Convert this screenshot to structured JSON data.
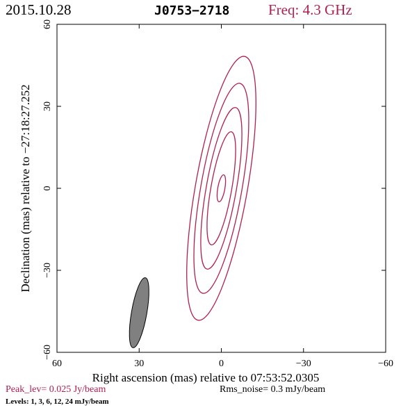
{
  "header": {
    "date": "2015.10.28",
    "source": "J0753−2718",
    "freq": "Freq: 4.3 GHz"
  },
  "chart_data": {
    "type": "contour",
    "xlabel": "Right ascension (mas) relative to 07:53:52.0305",
    "ylabel": "Declination (mas) relative to −27:18:27.252",
    "xlim": [
      60,
      -60
    ],
    "ylim": [
      -60,
      60
    ],
    "xticks": [
      60,
      30,
      0,
      -30,
      -60
    ],
    "yticks": [
      -60,
      -30,
      0,
      30,
      60
    ],
    "xtick_labels": [
      "60",
      "30",
      "0",
      "−30",
      "−60"
    ],
    "ytick_labels": [
      "−60",
      "−30",
      "0",
      "30",
      "60"
    ],
    "contour_levels_mJy_per_beam": [
      1,
      3,
      6,
      12,
      24
    ],
    "contours": [
      {
        "level": 1,
        "center": [
          0,
          0
        ],
        "semi_major": 49,
        "semi_minor": 9.5,
        "pa_deg": 10
      },
      {
        "level": 3,
        "center": [
          0,
          0
        ],
        "semi_major": 39,
        "semi_minor": 7.5,
        "pa_deg": 10
      },
      {
        "level": 6,
        "center": [
          0,
          0
        ],
        "semi_major": 30,
        "semi_minor": 5.5,
        "pa_deg": 10
      },
      {
        "level": 12,
        "center": [
          0,
          0
        ],
        "semi_major": 21,
        "semi_minor": 3.8,
        "pa_deg": 10
      },
      {
        "level": 24,
        "center": [
          0,
          0
        ],
        "semi_major": 5,
        "semi_minor": 1.3,
        "pa_deg": 10
      }
    ],
    "beam": {
      "center": [
        30,
        -45.5
      ],
      "semi_major": 13,
      "semi_minor": 2.8,
      "pa_deg": 10
    },
    "contour_color": "#b0204d",
    "beam_color": "#808080"
  },
  "footer": {
    "peak": "Peak_lev=  0.025 Jy/beam",
    "rms": "Rms_noise=   0.3 mJy/beam",
    "levels": "Levels:   1,    3,    6,   12,   24  mJy/beam"
  }
}
